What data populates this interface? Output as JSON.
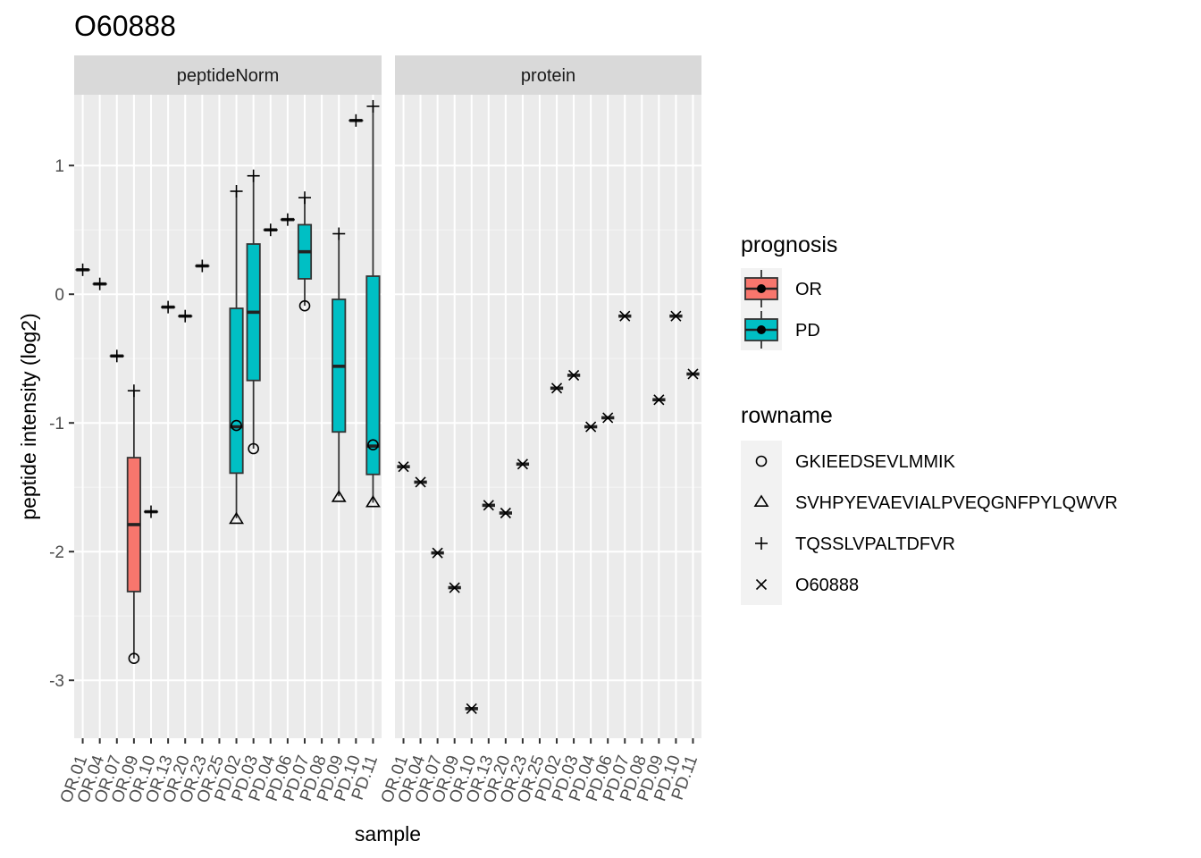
{
  "chart_data": {
    "type": "boxplot",
    "title": "O60888",
    "xlabel": "sample",
    "ylabel": "peptide intensity (log2)",
    "ylim": [
      -3.45,
      1.55
    ],
    "yticks": [
      1,
      0,
      -1,
      -2,
      -3
    ],
    "ytick_labels": [
      "1",
      "0",
      "-1",
      "-2",
      "-3"
    ],
    "samples": [
      "OR.01",
      "OR.04",
      "OR.07",
      "OR.09",
      "OR.10",
      "OR.13",
      "OR.20",
      "OR.23",
      "OR.25",
      "PD.02",
      "PD.03",
      "PD.04",
      "PD.06",
      "PD.07",
      "PD.08",
      "PD.09",
      "PD.10",
      "PD.11"
    ],
    "prognosis": [
      "OR",
      "OR",
      "OR",
      "OR",
      "OR",
      "OR",
      "OR",
      "OR",
      "OR",
      "PD",
      "PD",
      "PD",
      "PD",
      "PD",
      "PD",
      "PD",
      "PD",
      "PD"
    ],
    "facets": [
      {
        "name": "peptideNorm",
        "boxes": [
          {
            "sample": "OR.01",
            "min": 0.19,
            "q1": 0.19,
            "median": 0.19,
            "q3": 0.19,
            "max": 0.19,
            "points": [
              {
                "rowname": "TQSSLVPALTDFVR",
                "y": 0.19
              }
            ]
          },
          {
            "sample": "OR.04",
            "min": 0.08,
            "q1": 0.08,
            "median": 0.08,
            "q3": 0.08,
            "max": 0.08,
            "points": [
              {
                "rowname": "TQSSLVPALTDFVR",
                "y": 0.08
              }
            ]
          },
          {
            "sample": "OR.07",
            "min": -0.48,
            "q1": -0.48,
            "median": -0.48,
            "q3": -0.48,
            "max": -0.48,
            "points": [
              {
                "rowname": "TQSSLVPALTDFVR",
                "y": -0.48
              }
            ]
          },
          {
            "sample": "OR.09",
            "min": -2.83,
            "q1": -2.31,
            "median": -1.79,
            "q3": -1.27,
            "max": -0.75,
            "points": [
              {
                "rowname": "GKIEEDSEVLMMIK",
                "y": -2.83
              },
              {
                "rowname": "TQSSLVPALTDFVR",
                "y": -0.75
              }
            ]
          },
          {
            "sample": "OR.10",
            "min": -1.69,
            "q1": -1.69,
            "median": -1.69,
            "q3": -1.69,
            "max": -1.69,
            "points": [
              {
                "rowname": "TQSSLVPALTDFVR",
                "y": -1.69
              }
            ]
          },
          {
            "sample": "OR.13",
            "min": -0.1,
            "q1": -0.1,
            "median": -0.1,
            "q3": -0.1,
            "max": -0.1,
            "points": [
              {
                "rowname": "TQSSLVPALTDFVR",
                "y": -0.1
              }
            ]
          },
          {
            "sample": "OR.20",
            "min": -0.17,
            "q1": -0.17,
            "median": -0.17,
            "q3": -0.17,
            "max": -0.17,
            "points": [
              {
                "rowname": "TQSSLVPALTDFVR",
                "y": -0.17
              }
            ]
          },
          {
            "sample": "OR.23",
            "min": 0.22,
            "q1": 0.22,
            "median": 0.22,
            "q3": 0.22,
            "max": 0.22,
            "points": [
              {
                "rowname": "TQSSLVPALTDFVR",
                "y": 0.22
              }
            ]
          },
          {
            "sample": "OR.25",
            "min": null,
            "q1": null,
            "median": null,
            "q3": null,
            "max": null,
            "points": []
          },
          {
            "sample": "PD.02",
            "min": -1.74,
            "q1": -1.39,
            "median": -1.03,
            "q3": -0.11,
            "max": 0.8,
            "points": [
              {
                "rowname": "GKIEEDSEVLMMIK",
                "y": -1.02
              },
              {
                "rowname": "SVHPYEVAEVIALPVEQGNFPYLQWVR",
                "y": -1.75
              },
              {
                "rowname": "TQSSLVPALTDFVR",
                "y": 0.8
              }
            ]
          },
          {
            "sample": "PD.03",
            "min": -1.2,
            "q1": -0.67,
            "median": -0.14,
            "q3": 0.39,
            "max": 0.92,
            "points": [
              {
                "rowname": "GKIEEDSEVLMMIK",
                "y": -1.2
              },
              {
                "rowname": "TQSSLVPALTDFVR",
                "y": 0.92
              }
            ]
          },
          {
            "sample": "PD.04",
            "min": 0.5,
            "q1": 0.5,
            "median": 0.5,
            "q3": 0.5,
            "max": 0.5,
            "points": [
              {
                "rowname": "TQSSLVPALTDFVR",
                "y": 0.5
              }
            ]
          },
          {
            "sample": "PD.06",
            "min": 0.58,
            "q1": 0.58,
            "median": 0.58,
            "q3": 0.58,
            "max": 0.58,
            "points": [
              {
                "rowname": "TQSSLVPALTDFVR",
                "y": 0.58
              }
            ]
          },
          {
            "sample": "PD.07",
            "min": -0.09,
            "q1": 0.12,
            "median": 0.33,
            "q3": 0.54,
            "max": 0.75,
            "points": [
              {
                "rowname": "GKIEEDSEVLMMIK",
                "y": -0.09
              },
              {
                "rowname": "TQSSLVPALTDFVR",
                "y": 0.75
              }
            ]
          },
          {
            "sample": "PD.08",
            "min": null,
            "q1": null,
            "median": null,
            "q3": null,
            "max": null,
            "points": []
          },
          {
            "sample": "PD.09",
            "min": -1.57,
            "q1": -1.07,
            "median": -0.56,
            "q3": -0.04,
            "max": 0.47,
            "points": [
              {
                "rowname": "SVHPYEVAEVIALPVEQGNFPYLQWVR",
                "y": -1.58
              },
              {
                "rowname": "TQSSLVPALTDFVR",
                "y": 0.47
              }
            ]
          },
          {
            "sample": "PD.10",
            "min": 1.35,
            "q1": 1.35,
            "median": 1.35,
            "q3": 1.35,
            "max": 1.35,
            "points": [
              {
                "rowname": "TQSSLVPALTDFVR",
                "y": 1.35
              }
            ]
          },
          {
            "sample": "PD.11",
            "min": -1.62,
            "q1": -1.4,
            "median": -1.18,
            "q3": 0.14,
            "max": 1.46,
            "points": [
              {
                "rowname": "GKIEEDSEVLMMIK",
                "y": -1.17
              },
              {
                "rowname": "SVHPYEVAEVIALPVEQGNFPYLQWVR",
                "y": -1.62
              },
              {
                "rowname": "TQSSLVPALTDFVR",
                "y": 1.46
              }
            ]
          }
        ]
      },
      {
        "name": "protein",
        "boxes": [
          {
            "sample": "OR.01",
            "median": -1.34,
            "points": [
              {
                "rowname": "O60888",
                "y": -1.34
              }
            ]
          },
          {
            "sample": "OR.04",
            "median": -1.46,
            "points": [
              {
                "rowname": "O60888",
                "y": -1.46
              }
            ]
          },
          {
            "sample": "OR.07",
            "median": -2.01,
            "points": [
              {
                "rowname": "O60888",
                "y": -2.01
              }
            ]
          },
          {
            "sample": "OR.09",
            "median": -2.28,
            "points": [
              {
                "rowname": "O60888",
                "y": -2.28
              }
            ]
          },
          {
            "sample": "OR.10",
            "median": -3.22,
            "points": [
              {
                "rowname": "O60888",
                "y": -3.22
              }
            ]
          },
          {
            "sample": "OR.13",
            "median": -1.64,
            "points": [
              {
                "rowname": "O60888",
                "y": -1.64
              }
            ]
          },
          {
            "sample": "OR.20",
            "median": -1.7,
            "points": [
              {
                "rowname": "O60888",
                "y": -1.7
              }
            ]
          },
          {
            "sample": "OR.23",
            "median": -1.32,
            "points": [
              {
                "rowname": "O60888",
                "y": -1.32
              }
            ]
          },
          {
            "sample": "OR.25",
            "median": null,
            "points": []
          },
          {
            "sample": "PD.02",
            "median": -0.73,
            "points": [
              {
                "rowname": "O60888",
                "y": -0.73
              }
            ]
          },
          {
            "sample": "PD.03",
            "median": -0.63,
            "points": [
              {
                "rowname": "O60888",
                "y": -0.63
              }
            ]
          },
          {
            "sample": "PD.04",
            "median": -1.03,
            "points": [
              {
                "rowname": "O60888",
                "y": -1.03
              }
            ]
          },
          {
            "sample": "PD.06",
            "median": -0.96,
            "points": [
              {
                "rowname": "O60888",
                "y": -0.96
              }
            ]
          },
          {
            "sample": "PD.07",
            "median": -0.17,
            "points": [
              {
                "rowname": "O60888",
                "y": -0.17
              }
            ]
          },
          {
            "sample": "PD.08",
            "median": null,
            "points": []
          },
          {
            "sample": "PD.09",
            "median": -0.82,
            "points": [
              {
                "rowname": "O60888",
                "y": -0.82
              }
            ]
          },
          {
            "sample": "PD.10",
            "median": -0.17,
            "points": [
              {
                "rowname": "O60888",
                "y": -0.17
              }
            ]
          },
          {
            "sample": "PD.11",
            "median": -0.62,
            "points": [
              {
                "rowname": "O60888",
                "y": -0.62
              }
            ]
          }
        ]
      }
    ],
    "legend": {
      "placement": "right",
      "prognosis": {
        "title": "prognosis",
        "items": [
          {
            "label": "OR",
            "color": "#F8766D"
          },
          {
            "label": "PD",
            "color": "#00BFC4"
          }
        ]
      },
      "rowname": {
        "title": "rowname",
        "items": [
          {
            "label": "GKIEEDSEVLMMIK",
            "shape": "circle"
          },
          {
            "label": "SVHPYEVAEVIALPVEQGNFPYLQWVR",
            "shape": "triangle"
          },
          {
            "label": "TQSSLVPALTDFVR",
            "shape": "plus"
          },
          {
            "label": "O60888",
            "shape": "cross"
          }
        ]
      }
    },
    "colors": {
      "OR": "#F8766D",
      "PD": "#00BFC4",
      "panel_bg": "#EBEBEB",
      "strip_bg": "#D9D9D9",
      "grid": "#FFFFFF"
    },
    "grid": true
  }
}
